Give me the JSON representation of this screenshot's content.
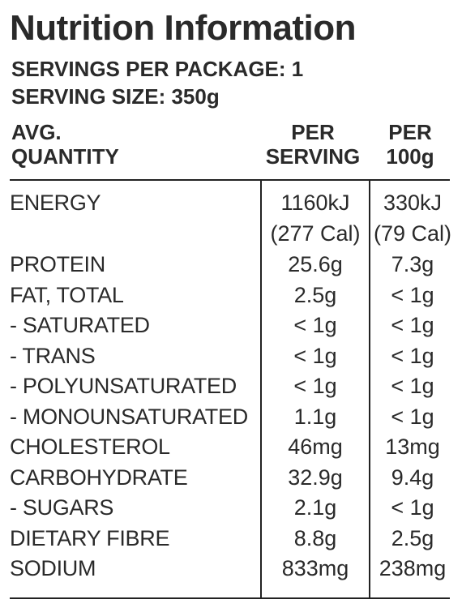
{
  "panel": {
    "title": "Nutrition Information",
    "servings_per_package": "SERVINGS PER PACKAGE: 1",
    "serving_size": "SERVING SIZE: 350g"
  },
  "header": {
    "col0": [
      "AVG.",
      "QUANTITY"
    ],
    "col1": [
      "PER",
      "SERVING"
    ],
    "col2": [
      "PER",
      "100g"
    ]
  },
  "rows": [
    {
      "label": "ENERGY",
      "per_serving": "1160kJ",
      "per_serving_sub": "(277 Cal)",
      "per_100g": "330kJ",
      "per_100g_sub": "(79 Cal)"
    },
    {
      "label": "PROTEIN",
      "per_serving": "25.6g",
      "per_100g": "7.3g"
    },
    {
      "label": "FAT, TOTAL",
      "per_serving": "2.5g",
      "per_100g": "< 1g"
    },
    {
      "label": "- SATURATED",
      "per_serving": "< 1g",
      "per_100g": "< 1g"
    },
    {
      "label": "- TRANS",
      "per_serving": "< 1g",
      "per_100g": "< 1g"
    },
    {
      "label": "- POLYUNSATURATED",
      "per_serving": "< 1g",
      "per_100g": "< 1g"
    },
    {
      "label": "- MONOUNSATURATED",
      "per_serving": "1.1g",
      "per_100g": "< 1g"
    },
    {
      "label": "CHOLESTEROL",
      "per_serving": "46mg",
      "per_100g": "13mg"
    },
    {
      "label": "CARBOHYDRATE",
      "per_serving": "32.9g",
      "per_100g": "9.4g"
    },
    {
      "label": "- SUGARS",
      "per_serving": "2.1g",
      "per_100g": "< 1g"
    },
    {
      "label": "DIETARY FIBRE",
      "per_serving": "8.8g",
      "per_100g": "2.5g"
    },
    {
      "label": "SODIUM",
      "per_serving": "833mg",
      "per_100g": "238mg"
    }
  ]
}
